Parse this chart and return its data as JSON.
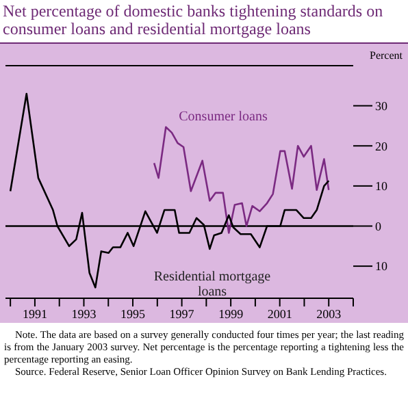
{
  "chart_data": {
    "type": "line",
    "title": "Net percentage of domestic banks tightening standards on consumer loans and residential mortgage loans",
    "ylabel": "Percent",
    "series": [
      {
        "name": "Consumer loans",
        "color": "#7b2a82",
        "x": [
          1995.87,
          1996.05,
          1996.35,
          1996.59,
          1996.83,
          1997.07,
          1997.37,
          1997.84,
          1998.14,
          1998.38,
          1998.68,
          1998.92,
          1999.16,
          1999.46,
          1999.64,
          1999.88,
          2000.18,
          2000.48,
          2000.72,
          2001.02,
          2001.2,
          2001.5,
          2001.74,
          2001.98,
          2002.28,
          2002.51,
          2002.81,
          2003.0
        ],
        "values": [
          15.7,
          12,
          24.7,
          23.3,
          20.7,
          19.7,
          8.7,
          16.3,
          6.3,
          8.3,
          8.3,
          -1.7,
          5.3,
          5.7,
          0,
          5,
          3.7,
          5.7,
          8,
          18.7,
          18.7,
          9.3,
          20,
          17.3,
          20,
          9,
          16.7,
          9
        ]
      },
      {
        "name": "Residential mortgage loans",
        "color": "#000000",
        "x": [
          1990.0,
          1990.66,
          1991.14,
          1991.74,
          1991.92,
          1992.4,
          1992.69,
          1992.93,
          1993.23,
          1993.47,
          1993.71,
          1994.01,
          1994.19,
          1994.49,
          1994.79,
          1995.03,
          1995.51,
          1995.99,
          1996.29,
          1996.71,
          1996.89,
          1997.31,
          1997.6,
          1997.9,
          1998.14,
          1998.32,
          1998.62,
          1998.92,
          1999.1,
          1999.4,
          1999.82,
          2000.18,
          2000.48,
          2001.02,
          2001.2,
          2001.68,
          2001.98,
          2002.28,
          2002.51,
          2002.81,
          2003.0
        ],
        "values": [
          8.7,
          33,
          12,
          4,
          0,
          -5,
          -3.3,
          3.3,
          -11.7,
          -15.3,
          -6.3,
          -6.7,
          -5.3,
          -5.3,
          -1.7,
          -5,
          3.7,
          -1.7,
          4,
          4,
          -1.7,
          -1.7,
          2,
          0.3,
          -5.7,
          -2.3,
          -1.7,
          2.7,
          -0.3,
          -2,
          -2,
          -5.3,
          0,
          0,
          4,
          4,
          2,
          2,
          4,
          10,
          11.3
        ]
      }
    ],
    "xlim": [
      1989.8,
      2004
    ],
    "xticks": [
      {
        "value": 1990,
        "label": null
      },
      {
        "value": 1991,
        "label": "1991"
      },
      {
        "value": 1992,
        "label": null
      },
      {
        "value": 1993,
        "label": "1993"
      },
      {
        "value": 1994,
        "label": null
      },
      {
        "value": 1995,
        "label": "1995"
      },
      {
        "value": 1996,
        "label": null
      },
      {
        "value": 1997,
        "label": "1997"
      },
      {
        "value": 1998,
        "label": null
      },
      {
        "value": 1999,
        "label": "1999"
      },
      {
        "value": 2000,
        "label": null
      },
      {
        "value": 2001,
        "label": "2001"
      },
      {
        "value": 2002,
        "label": null
      },
      {
        "value": 2003,
        "label": "2003"
      },
      {
        "value": 2004,
        "label": null
      }
    ],
    "ylim": [
      -18,
      40
    ],
    "yticks": [
      {
        "value": -10,
        "label": "10"
      },
      0,
      10,
      20,
      30
    ],
    "ref_lines": [
      {
        "axis": "y",
        "value": 0
      }
    ],
    "grid": false,
    "legend": false,
    "marker": "none",
    "line_style": "solid",
    "annotations": [
      "Note. The data are based on a survey generally conducted four times per year; the last reading is from the January 2003 survey. Net percentage is the percentage reporting a tightening less the percentage reporting an easing.",
      "Source. Federal Reserve, Senior Loan Officer Opinion Survey on Bank Lending Practices."
    ]
  }
}
